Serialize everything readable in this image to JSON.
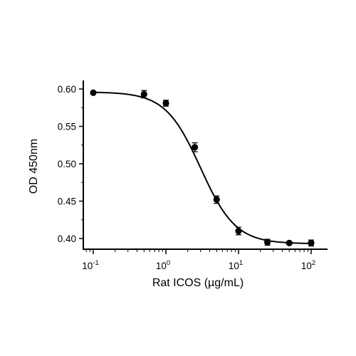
{
  "chart_data": {
    "type": "scatter",
    "title": "",
    "xlabel": "Rat ICOS (µg/mL)",
    "ylabel": "OD 450nm",
    "x_scale": "log10",
    "xlim": [
      0.08,
      150
    ],
    "ylim": [
      0.385,
      0.605
    ],
    "y_ticks": [
      "0.40",
      "0.45",
      "0.50",
      "0.55",
      "0.60"
    ],
    "y_tick_values": [
      0.4,
      0.45,
      0.5,
      0.55,
      0.6
    ],
    "x_ticks": [
      {
        "value": 0.1,
        "base": "10",
        "exp": "-1"
      },
      {
        "value": 1,
        "base": "10",
        "exp": "0"
      },
      {
        "value": 10,
        "base": "10",
        "exp": "1"
      },
      {
        "value": 100,
        "base": "10",
        "exp": "2"
      }
    ],
    "grid": false,
    "legend": "none",
    "series": [
      {
        "x": [
          0.1,
          0.5,
          1,
          2.5,
          5,
          10,
          25,
          50,
          100
        ],
        "y": [
          0.595,
          0.593,
          0.581,
          0.522,
          0.452,
          0.41,
          0.395,
          0.394,
          0.394
        ],
        "error": [
          0.001,
          0.005,
          0.004,
          0.006,
          0.005,
          0.005,
          0.004,
          0.002,
          0.004
        ],
        "fit": "four-parameter logistic",
        "fit_params": {
          "top": 0.596,
          "bottom": 0.393,
          "ec50": 3.0,
          "hill": 1.8
        },
        "color": "#000000"
      }
    ]
  }
}
